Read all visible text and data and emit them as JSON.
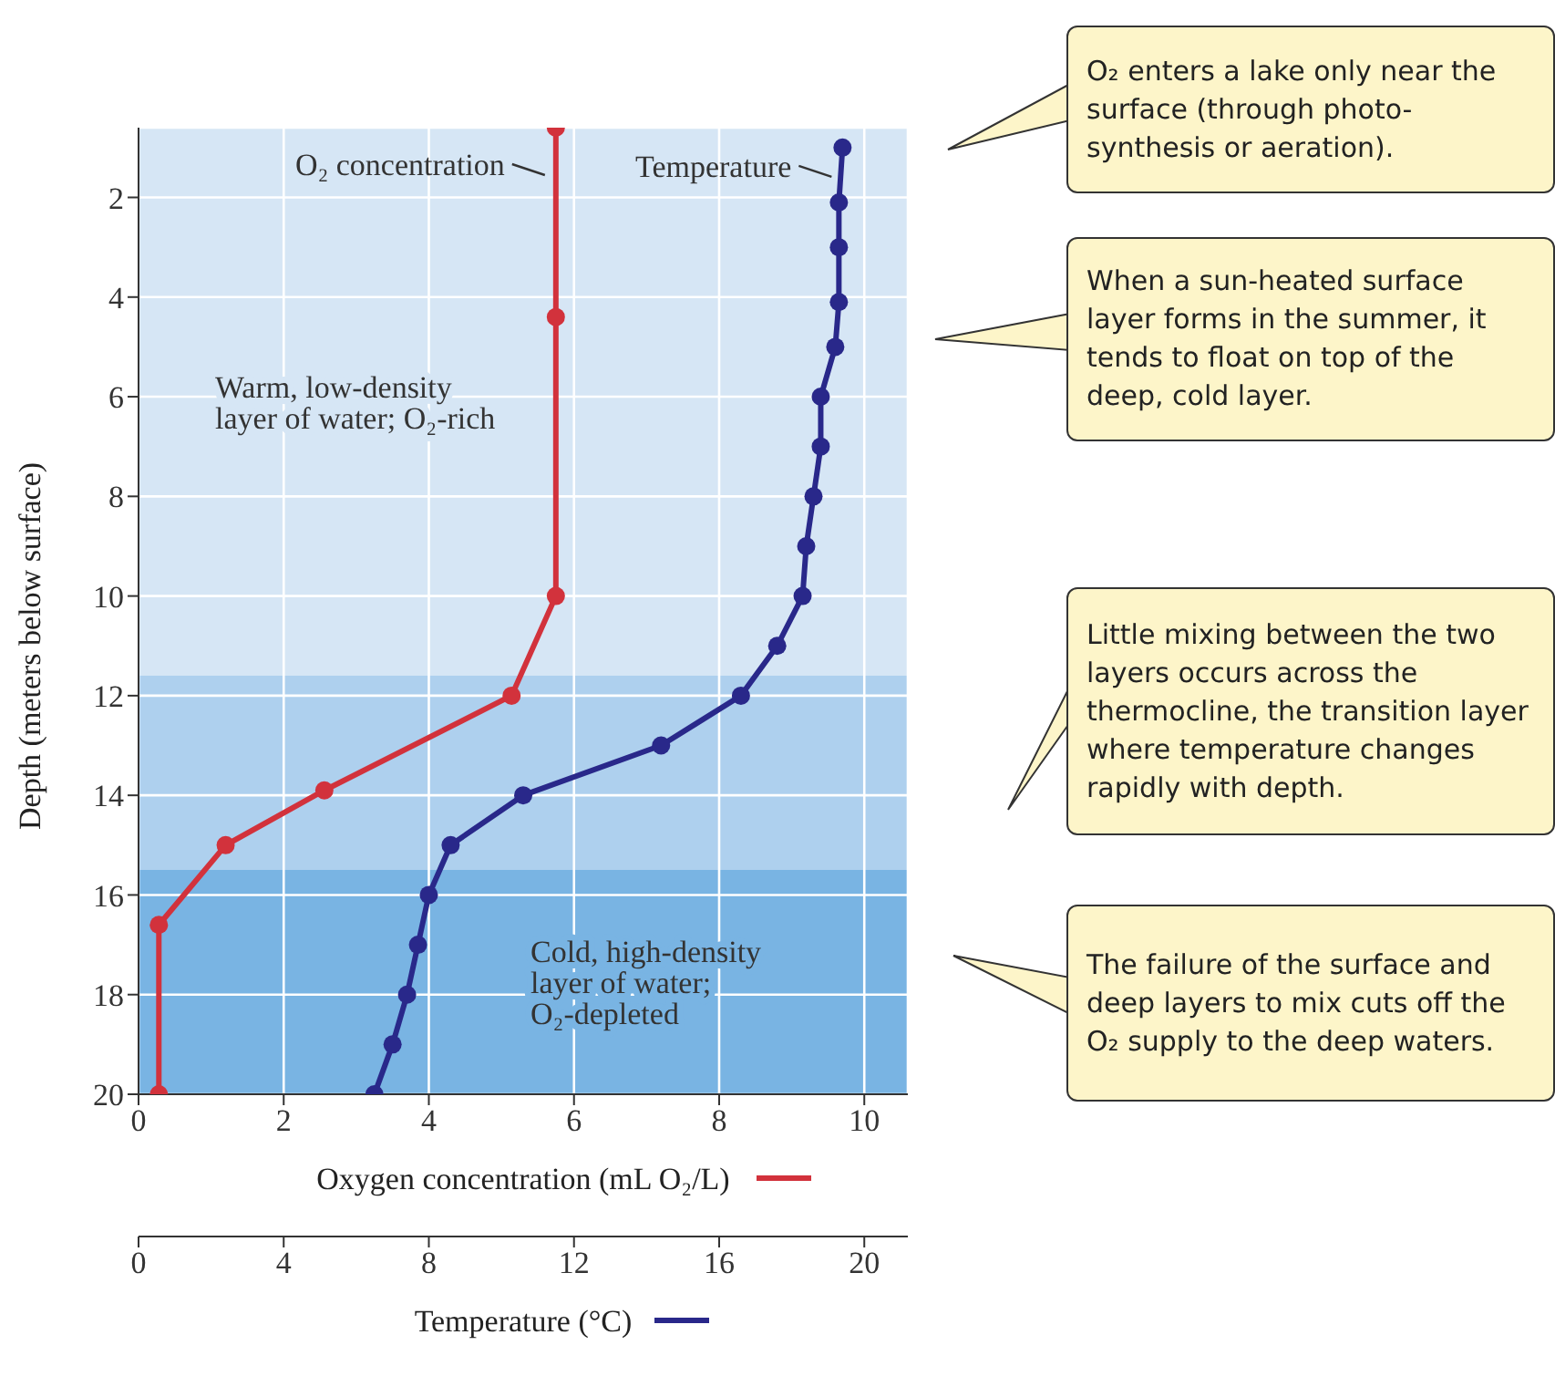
{
  "chart_data": {
    "type": "line",
    "xlabel": "Oxygen concentration (mL O₂/L)",
    "x2label": "Temperature (°C)",
    "ylabel": "Depth (meters below surface)",
    "xlim": [
      0,
      10.6
    ],
    "xticks": [
      0,
      2,
      4,
      6,
      8,
      10
    ],
    "x2lim": [
      0,
      21.2
    ],
    "x2ticks": [
      0,
      4,
      8,
      12,
      16,
      20
    ],
    "ylim": [
      20,
      0.6
    ],
    "yticks": [
      2,
      4,
      6,
      8,
      10,
      12,
      14,
      16,
      18,
      20
    ],
    "grid": true,
    "marker": "circle",
    "line_style": "solid",
    "series": [
      {
        "name": "O₂ concentration",
        "color": "#d2323c",
        "x": [
          5.75,
          5.75,
          5.75,
          5.14,
          2.56,
          1.2,
          0.28,
          0.28
        ],
        "values": [
          0.6,
          4.4,
          10.0,
          12.0,
          13.9,
          15.0,
          16.6,
          20.0
        ]
      },
      {
        "name": "Temperature",
        "color": "#29288a",
        "axis": "x2",
        "x": [
          19.4,
          19.3,
          19.3,
          19.3,
          19.2,
          18.8,
          18.8,
          18.6,
          18.4,
          18.3,
          17.6,
          16.6,
          14.4,
          10.6,
          8.6,
          8.0,
          7.7,
          7.4,
          7.0,
          6.5
        ],
        "values": [
          1.0,
          2.1,
          3.0,
          4.1,
          5.0,
          6.0,
          7.0,
          8.0,
          9.0,
          10.0,
          11.0,
          12.0,
          13.0,
          14.0,
          15.0,
          16.0,
          17.0,
          18.0,
          19.0,
          20.0
        ]
      }
    ],
    "bands": [
      {
        "axis": "y",
        "from": 0.6,
        "to": 11.6,
        "color": "#d6e6f5",
        "label": "Warm, low-density layer of water; O₂-rich"
      },
      {
        "axis": "y",
        "from": 11.6,
        "to": 15.5,
        "color": "#aed0ee"
      },
      {
        "axis": "y",
        "from": 15.5,
        "to": 20,
        "color": "#79b4e3",
        "label": "Cold, high-density layer of water; O₂-depleted"
      }
    ],
    "annotations": [
      "O₂ enters a lake only near the surface (through photo-synthesis or aeration).",
      "When a sun-heated surface layer forms in the summer, it tends to float on top of the deep, cold layer.",
      "Little mixing between the two layers occurs across the thermocline, the transition layer where temperature changes rapidly with depth.",
      "The failure of the surface and deep layers to mix cuts off the O₂ supply to the deep waters."
    ]
  }
}
